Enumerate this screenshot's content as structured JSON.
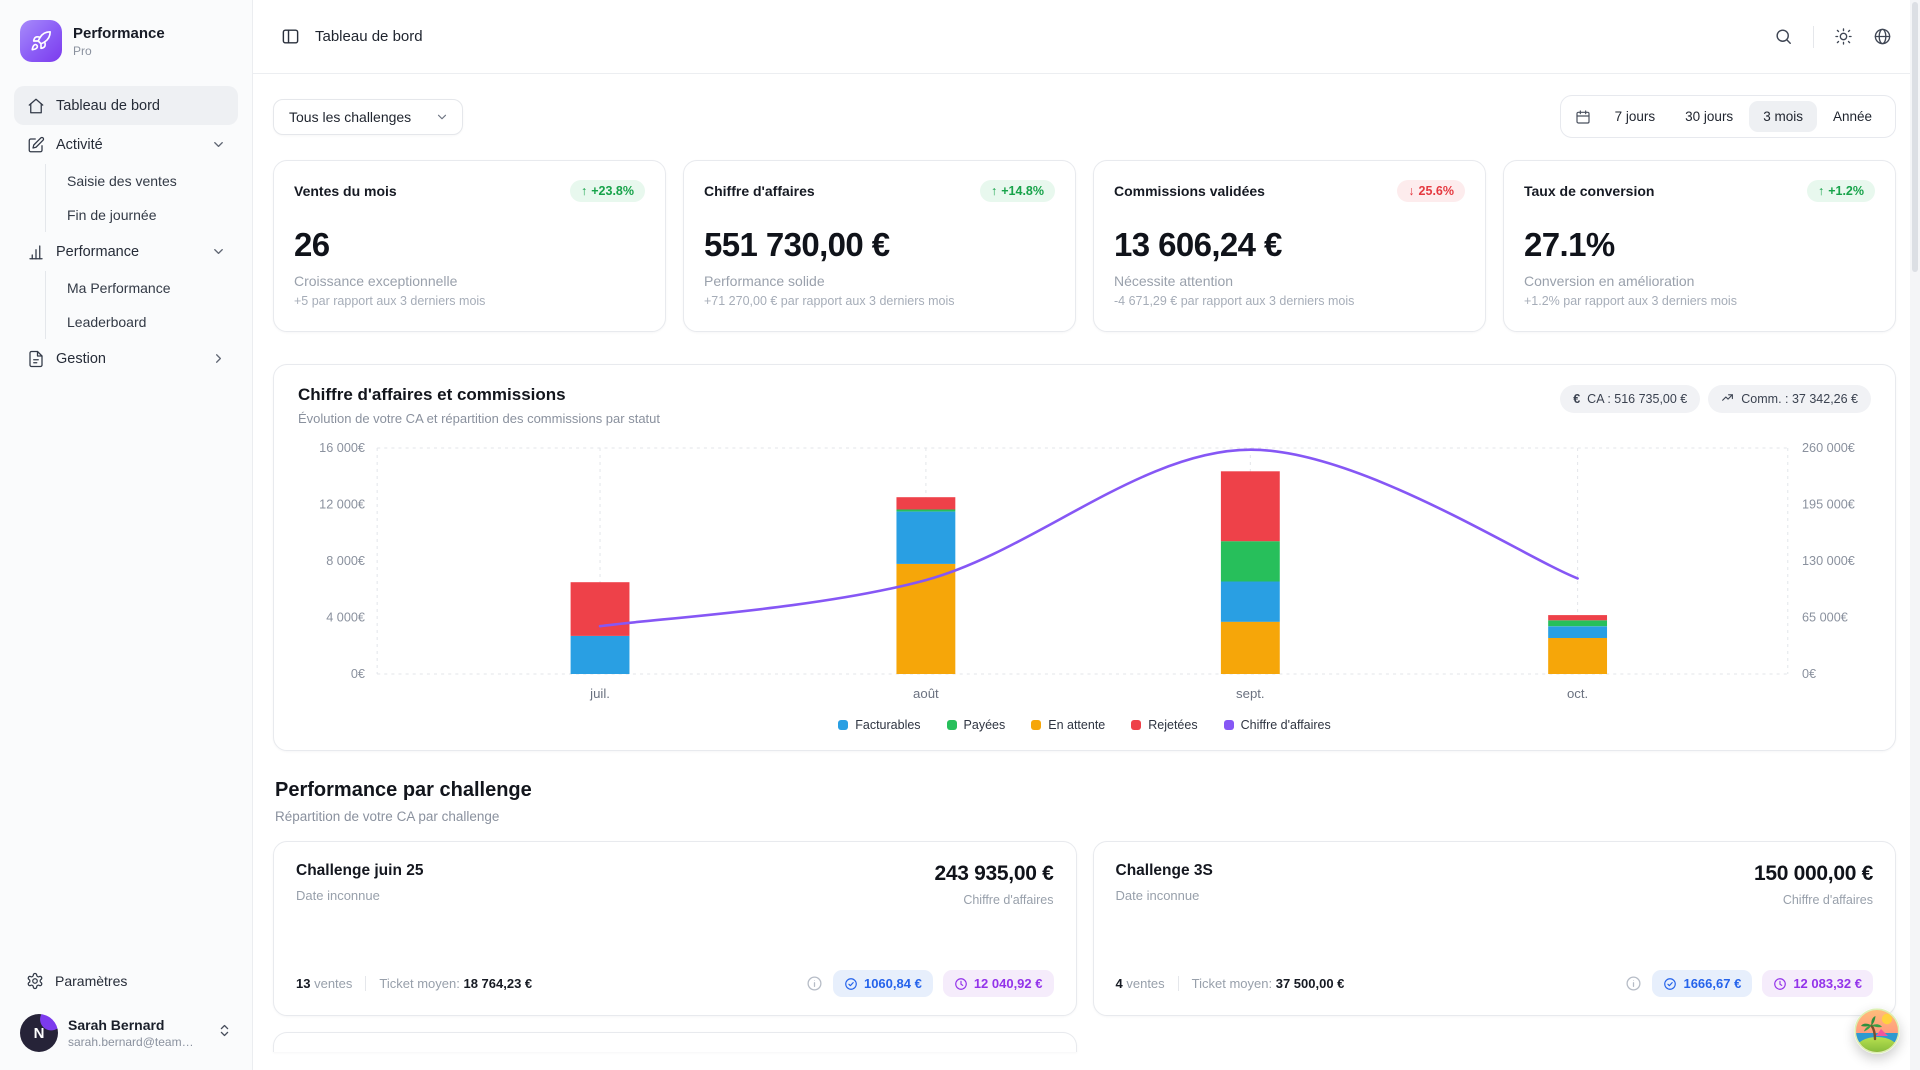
{
  "sidebar": {
    "logo": {
      "title": "Performance",
      "subtitle": "Pro"
    },
    "nav": [
      {
        "id": "tableau-de-bord",
        "label": "Tableau de bord",
        "icon": "home",
        "active": true
      },
      {
        "id": "activite",
        "label": "Activité",
        "icon": "edit",
        "chevron": "down"
      },
      {
        "id": "saisie-des-ventes",
        "label": "Saisie des ventes",
        "sub": true
      },
      {
        "id": "fin-de-journee",
        "label": "Fin de journée",
        "sub": true
      },
      {
        "id": "performance",
        "label": "Performance",
        "icon": "chart",
        "chevron": "down"
      },
      {
        "id": "ma-performance",
        "label": "Ma Performance",
        "sub": true
      },
      {
        "id": "leaderboard",
        "label": "Leaderboard",
        "sub": true
      },
      {
        "id": "gestion",
        "label": "Gestion",
        "icon": "doc",
        "chevron": "right"
      }
    ],
    "settings_label": "Paramètres",
    "user": {
      "initial": "N",
      "name": "Sarah Bernard",
      "email": "sarah.bernard@team45..."
    }
  },
  "header": {
    "title": "Tableau de bord"
  },
  "filters": {
    "challenge_select": "Tous les challenges",
    "ranges": [
      {
        "label": "7 jours"
      },
      {
        "label": "30 jours"
      },
      {
        "label": "3 mois",
        "active": true
      },
      {
        "label": "Année"
      }
    ]
  },
  "kpis": [
    {
      "title": "Ventes du mois",
      "badge": "+23.8%",
      "trend": "up",
      "value": "26",
      "subtitle": "Croissance exceptionnelle",
      "note": "+5 par rapport aux 3 derniers mois"
    },
    {
      "title": "Chiffre d'affaires",
      "badge": "+14.8%",
      "trend": "up",
      "value": "551 730,00 €",
      "subtitle": "Performance solide",
      "note": "+71 270,00 € par rapport aux 3 derniers mois"
    },
    {
      "title": "Commissions validées",
      "badge": "25.6%",
      "trend": "down",
      "value": "13 606,24 €",
      "subtitle": "Nécessite attention",
      "note": "-4 671,29 € par rapport aux 3 derniers mois"
    },
    {
      "title": "Taux de conversion",
      "badge": "+1.2%",
      "trend": "up",
      "value": "27.1%",
      "subtitle": "Conversion en amélioration",
      "note": "+1.2% par rapport aux 3 derniers mois"
    }
  ],
  "chart_section": {
    "title": "Chiffre d'affaires et commissions",
    "subtitle": "Évolution de votre CA et répartition des commissions par statut",
    "ca_badge": "CA : 516 735,00 €",
    "comm_badge": "Comm. : 37 342,26 €"
  },
  "chart_data": {
    "type": "bar",
    "subtype": "stacked-bars-left-axis-with-line-right-axis",
    "categories": [
      "juil.",
      "août",
      "sept.",
      "oct."
    ],
    "series": [
      {
        "name": "En attente",
        "color": "#f6a609",
        "values": [
          0,
          7800,
          3700,
          2550
        ]
      },
      {
        "name": "Facturables",
        "color": "#299fe3",
        "values": [
          2700,
          3700,
          2850,
          830
        ]
      },
      {
        "name": "Payées",
        "color": "#27bf5b",
        "values": [
          0,
          150,
          2850,
          420
        ]
      },
      {
        "name": "Rejetées",
        "color": "#ee4149",
        "values": [
          3800,
          870,
          4950,
          370
        ]
      }
    ],
    "line": {
      "name": "Chiffre d'affaires",
      "color": "#8657f5",
      "axis": "right",
      "values": [
        55000,
        108000,
        258000,
        110000
      ]
    },
    "left_axis": {
      "max": 16000,
      "ticks": [
        16000,
        12000,
        8000,
        4000,
        0
      ],
      "tick_labels": [
        "16 000€",
        "12 000€",
        "8 000€",
        "4 000€",
        "0€"
      ]
    },
    "right_axis": {
      "max": 260000,
      "ticks": [
        260000,
        195000,
        130000,
        65000,
        0
      ],
      "tick_labels": [
        "260 000€",
        "195 000€",
        "130 000€",
        "65 000€",
        "0€"
      ]
    },
    "legend": [
      {
        "label": "Facturables",
        "color": "#299fe3"
      },
      {
        "label": "Payées",
        "color": "#27bf5b"
      },
      {
        "label": "En attente",
        "color": "#f6a609"
      },
      {
        "label": "Rejetées",
        "color": "#ee4149"
      },
      {
        "label": "Chiffre d'affaires",
        "color": "#8657f5"
      }
    ],
    "grid": "dashed verticals at categories, dashed top and bottom borders",
    "legend_position": "bottom-center"
  },
  "challenges": {
    "title": "Performance par challenge",
    "subtitle": "Répartition de votre CA par challenge",
    "cards": [
      {
        "name": "Challenge juin 25",
        "date": "Date inconnue",
        "amount": "243 935,00 €",
        "amount_label": "Chiffre d'affaires",
        "sales_count": "13",
        "sales_label": "ventes",
        "ticket_label": "Ticket moyen:",
        "ticket_value": "18 764,23 €",
        "validated_amount": "1060,84 €",
        "pending_amount": "12 040,92 €"
      },
      {
        "name": "Challenge 3S",
        "date": "Date inconnue",
        "amount": "150 000,00 €",
        "amount_label": "Chiffre d'affaires",
        "sales_count": "4",
        "sales_label": "ventes",
        "ticket_label": "Ticket moyen:",
        "ticket_value": "37 500,00 €",
        "validated_amount": "1666,67 €",
        "pending_amount": "12 083,32 €"
      }
    ]
  },
  "colors": {
    "accent": "#8b5cf6",
    "badge_up_text": "#17a34a",
    "badge_up_bg": "#e8f8ee",
    "badge_down_text": "#e53940",
    "badge_down_bg": "#fdeced",
    "pill_blue_text": "#2563eb",
    "pill_blue_bg": "#e7effc",
    "pill_purple_text": "#9333ea",
    "pill_purple_bg": "#f5ecfb"
  }
}
